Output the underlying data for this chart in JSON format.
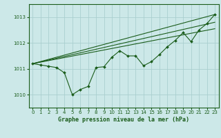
{
  "title": "Graphe pression niveau de la mer (hPa)",
  "bg_color": "#cce8e8",
  "grid_color": "#aacfcf",
  "line_color": "#1a5c1a",
  "spine_color": "#1a5c1a",
  "x_min": -0.5,
  "x_max": 23.5,
  "y_min": 1009.5,
  "y_max": 1013.5,
  "yticks": [
    1010,
    1011,
    1012,
    1013
  ],
  "xticks": [
    0,
    1,
    2,
    3,
    4,
    5,
    6,
    7,
    8,
    9,
    10,
    11,
    12,
    13,
    14,
    15,
    16,
    17,
    18,
    19,
    20,
    21,
    22,
    23
  ],
  "main_x": [
    0,
    1,
    2,
    3,
    4,
    5,
    6,
    7,
    8,
    9,
    10,
    11,
    12,
    13,
    14,
    15,
    16,
    17,
    18,
    19,
    20,
    21,
    22,
    23
  ],
  "main_y": [
    1011.2,
    1011.15,
    1011.1,
    1011.05,
    1010.85,
    1010.0,
    1010.2,
    1010.32,
    1011.05,
    1011.08,
    1011.45,
    1011.7,
    1011.5,
    1011.5,
    1011.12,
    1011.28,
    1011.55,
    1011.85,
    1012.1,
    1012.4,
    1012.05,
    1012.5,
    1012.75,
    1013.1
  ],
  "line1_x": [
    0,
    23
  ],
  "line1_y": [
    1011.2,
    1013.1
  ],
  "line2_x": [
    0,
    23
  ],
  "line2_y": [
    1011.2,
    1012.8
  ],
  "line3_x": [
    0,
    23
  ],
  "line3_y": [
    1011.2,
    1012.55
  ],
  "tick_fontsize": 5.0,
  "label_fontsize": 6.0
}
